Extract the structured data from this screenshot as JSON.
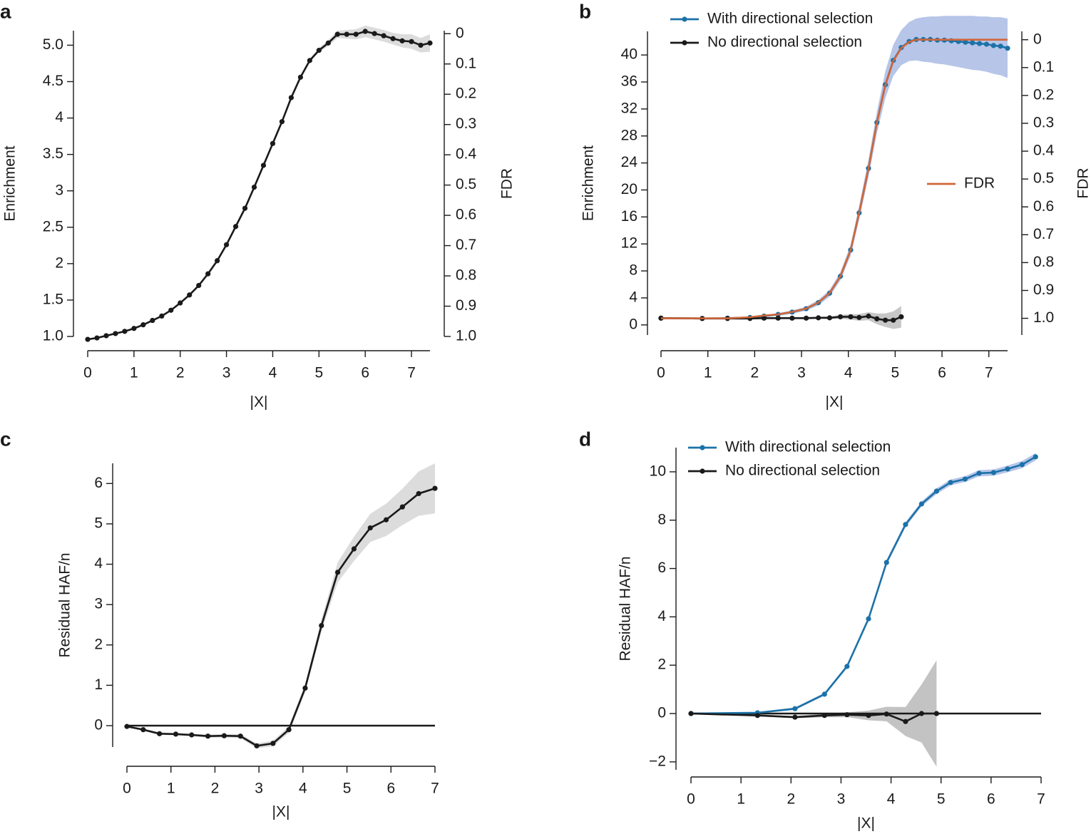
{
  "chart_data": [
    {
      "type": "line",
      "panel": "a",
      "xlabel": "|X|",
      "ylabel": "Enrichment",
      "y2label": "FDR",
      "xlim": [
        0,
        7.4
      ],
      "xticks": [
        0,
        1,
        2,
        3,
        4,
        5,
        6,
        7
      ],
      "ylim": [
        1,
        5.2
      ],
      "yticks": [
        {
          "value": 1,
          "label": "1.0"
        },
        1.5,
        2,
        2.5,
        3,
        3.5,
        4,
        4.5,
        {
          "value": 5,
          "label": "5.0"
        }
      ],
      "y2lim": [
        1,
        -0.01
      ],
      "y2ticks": [
        0,
        0.1,
        0.2,
        0.3,
        0.4,
        0.5,
        0.6,
        0.7,
        0.8,
        0.9,
        {
          "value": 1,
          "label": "1.0"
        }
      ],
      "series": [
        {
          "color": "#1a1a1a",
          "band_color": "#d6d6d6",
          "markers": true,
          "x": [
            0,
            0.2,
            0.4,
            0.6,
            0.8,
            1,
            1.2,
            1.4,
            1.6,
            1.8,
            2,
            2.2,
            2.4,
            2.6,
            2.8,
            3,
            3.2,
            3.4,
            3.6,
            3.8,
            4,
            4.2,
            4.4,
            4.6,
            4.8,
            5,
            5.2,
            5.4,
            5.6,
            5.8,
            6,
            6.2,
            6.4,
            6.6,
            6.8,
            7,
            7.2,
            7.4
          ],
          "values": [
            0.96,
            0.98,
            1.01,
            1.04,
            1.07,
            1.11,
            1.16,
            1.22,
            1.28,
            1.36,
            1.46,
            1.57,
            1.7,
            1.86,
            2.04,
            2.26,
            2.51,
            2.76,
            3.05,
            3.35,
            3.65,
            3.95,
            4.28,
            4.56,
            4.79,
            4.93,
            5.03,
            5.15,
            5.15,
            5.15,
            5.19,
            5.16,
            5.13,
            5.09,
            5.06,
            5.05,
            5.0,
            5.03
          ],
          "error": [
            0.01,
            0.01,
            0.01,
            0.01,
            0.01,
            0.01,
            0.01,
            0.01,
            0.01,
            0.01,
            0.015,
            0.015,
            0.015,
            0.015,
            0.015,
            0.015,
            0.015,
            0.015,
            0.015,
            0.015,
            0.02,
            0.02,
            0.02,
            0.02,
            0.02,
            0.03,
            0.04,
            0.05,
            0.06,
            0.07,
            0.08,
            0.08,
            0.08,
            0.08,
            0.09,
            0.1,
            0.1,
            0.12
          ]
        }
      ]
    },
    {
      "type": "line",
      "panel": "b",
      "xlabel": "|X|",
      "ylabel": "Enrichment",
      "y2label": "FDR",
      "xlim": [
        0,
        7.4
      ],
      "xticks": [
        0,
        1,
        2,
        3,
        4,
        5,
        6,
        7
      ],
      "ylim": [
        -1.5,
        43.5
      ],
      "yticks": [
        0,
        4,
        8,
        12,
        16,
        20,
        24,
        28,
        32,
        36,
        40
      ],
      "y2lim": [
        1.06,
        -0.03
      ],
      "y2ticks": [
        0,
        0.1,
        0.2,
        0.3,
        0.4,
        0.5,
        0.6,
        0.7,
        0.8,
        0.9,
        {
          "value": 1,
          "label": "1.0"
        }
      ],
      "series": [
        {
          "name": "With directional selection",
          "color": "#1b72a8",
          "band_color": "#a9bbe4",
          "markers": true,
          "x": [
            0,
            0.88,
            1.42,
            1.9,
            2.2,
            2.5,
            2.8,
            3.1,
            3.36,
            3.6,
            3.83,
            4.05,
            4.23,
            4.43,
            4.61,
            4.79,
            4.96,
            5.13,
            5.3,
            5.45,
            5.6,
            5.75,
            5.9,
            6.05,
            6.2,
            6.35,
            6.5,
            6.65,
            6.8,
            6.95,
            7.1,
            7.25,
            7.4
          ],
          "values": [
            1.0,
            0.95,
            1.0,
            1.1,
            1.3,
            1.55,
            1.9,
            2.4,
            3.3,
            4.7,
            7.2,
            11.1,
            16.6,
            23.2,
            30.0,
            35.6,
            39.2,
            41.1,
            42.0,
            42.3,
            42.3,
            42.3,
            42.2,
            42.2,
            42.1,
            42.0,
            41.9,
            41.8,
            41.7,
            41.6,
            41.4,
            41.3,
            41.0
          ],
          "error": [
            0.1,
            0.1,
            0.1,
            0.1,
            0.15,
            0.2,
            0.25,
            0.3,
            0.4,
            0.5,
            0.6,
            0.8,
            1,
            1.3,
            1.6,
            2,
            2.3,
            2.6,
            2.9,
            3.1,
            3.3,
            3.4,
            3.5,
            3.6,
            3.7,
            3.8,
            3.9,
            4,
            4,
            4.1,
            4.2,
            4.3,
            4.4
          ]
        },
        {
          "name": "No directional selection",
          "color": "#1a1a1a",
          "band_color": "#bdbdbd",
          "markers": true,
          "x": [
            0,
            0.88,
            1.42,
            1.9,
            2.2,
            2.5,
            2.8,
            3.1,
            3.36,
            3.6,
            3.83,
            4.05,
            4.23,
            4.43,
            4.61,
            4.79,
            4.96,
            5.13
          ],
          "values": [
            1,
            0.95,
            0.95,
            0.95,
            1,
            1,
            1,
            1,
            1.05,
            1.05,
            1.2,
            1.2,
            1.1,
            1.3,
            0.9,
            0.7,
            0.7,
            1.2
          ],
          "error": [
            0.05,
            0.05,
            0.05,
            0.05,
            0.1,
            0.1,
            0.1,
            0.15,
            0.15,
            0.2,
            0.3,
            0.4,
            0.5,
            0.6,
            0.8,
            1.0,
            1.3,
            1.6
          ]
        },
        {
          "name": "FDR",
          "color": "#d0663a",
          "axis": "y2",
          "markers": false,
          "x": [
            0,
            0.88,
            1.42,
            1.9,
            2.2,
            2.5,
            2.8,
            3.1,
            3.36,
            3.6,
            3.83,
            4.05,
            4.23,
            4.43,
            4.61,
            4.79,
            4.96,
            5.13,
            5.3,
            5.45,
            5.6,
            5.75,
            5.9,
            6.05,
            6.2,
            6.35,
            6.5,
            6.65,
            6.8,
            6.95,
            7.1,
            7.25,
            7.4
          ],
          "values": [
            1.0,
            1.0,
            1.0,
            0.996,
            0.99,
            0.986,
            0.977,
            0.965,
            0.943,
            0.909,
            0.849,
            0.755,
            0.622,
            0.462,
            0.298,
            0.163,
            0.076,
            0.03,
            0.008,
            0,
            0,
            0,
            0,
            0,
            0,
            0,
            0,
            0,
            0,
            0,
            0,
            0,
            0
          ]
        }
      ]
    },
    {
      "type": "line",
      "panel": "c",
      "xlabel": "|X|",
      "ylabel": "Residual HAF/n",
      "xlim": [
        0,
        7
      ],
      "xticks": [
        0,
        1,
        2,
        3,
        4,
        5,
        6,
        7
      ],
      "ylim": [
        -0.53,
        6.5
      ],
      "yticks": [
        0,
        1,
        2,
        3,
        4,
        5,
        6
      ],
      "hline": 0,
      "series": [
        {
          "color": "#1a1a1a",
          "band_color": "#d6d6d6",
          "markers": true,
          "x": [
            0,
            0.37,
            0.74,
            1.11,
            1.47,
            1.84,
            2.21,
            2.58,
            2.95,
            3.32,
            3.68,
            4.05,
            4.42,
            4.79,
            5.16,
            5.53,
            5.89,
            6.26,
            6.63,
            7
          ],
          "values": [
            -0.02,
            -0.1,
            -0.2,
            -0.21,
            -0.23,
            -0.26,
            -0.25,
            -0.26,
            -0.5,
            -0.44,
            -0.1,
            0.93,
            2.48,
            3.8,
            4.38,
            4.9,
            5.1,
            5.42,
            5.75,
            5.88
          ],
          "error": [
            0.02,
            0.03,
            0.03,
            0.03,
            0.03,
            0.04,
            0.04,
            0.05,
            0.06,
            0.07,
            0.08,
            0.1,
            0.15,
            0.25,
            0.3,
            0.35,
            0.4,
            0.45,
            0.55,
            0.62
          ]
        }
      ]
    },
    {
      "type": "line",
      "panel": "d",
      "xlabel": "|X|",
      "ylabel": "Residual HAF/n",
      "xlim": [
        0,
        7
      ],
      "xticks": [
        0,
        1,
        2,
        3,
        4,
        5,
        6,
        7
      ],
      "ylim": [
        -2.33,
        11
      ],
      "yticks": [
        {
          "value": -2,
          "label": "−2"
        },
        0,
        2,
        4,
        6,
        8,
        10
      ],
      "hline": 0,
      "series": [
        {
          "name": "With directional selection",
          "color": "#1b72a8",
          "band_color": "#a9bbe4",
          "markers": true,
          "x": [
            0,
            1.33,
            2.08,
            2.67,
            3.12,
            3.55,
            3.91,
            4.29,
            4.61,
            4.91,
            5.19,
            5.48,
            5.76,
            6.05,
            6.33,
            6.62,
            6.89
          ],
          "values": [
            0,
            0.03,
            0.2,
            0.8,
            1.95,
            3.92,
            6.25,
            7.82,
            8.67,
            9.2,
            9.56,
            9.7,
            9.94,
            9.97,
            10.12,
            10.3,
            10.62
          ],
          "error": [
            0.02,
            0.03,
            0.05,
            0.06,
            0.07,
            0.08,
            0.1,
            0.1,
            0.1,
            0.12,
            0.12,
            0.12,
            0.13,
            0.13,
            0.14,
            0.15,
            0.15
          ]
        },
        {
          "name": "No directional selection",
          "color": "#1a1a1a",
          "band_color": "#b8b8b8",
          "markers": true,
          "x": [
            0,
            1.33,
            2.08,
            2.67,
            3.12,
            3.55,
            3.91,
            4.29,
            4.61,
            4.91
          ],
          "values": [
            0,
            -0.08,
            -0.15,
            -0.08,
            -0.05,
            -0.08,
            -0.02,
            -0.33,
            0,
            0
          ],
          "error": [
            0.02,
            0.03,
            0.05,
            0.07,
            0.1,
            0.2,
            0.3,
            0.6,
            1.2,
            2.2
          ]
        }
      ]
    }
  ]
}
